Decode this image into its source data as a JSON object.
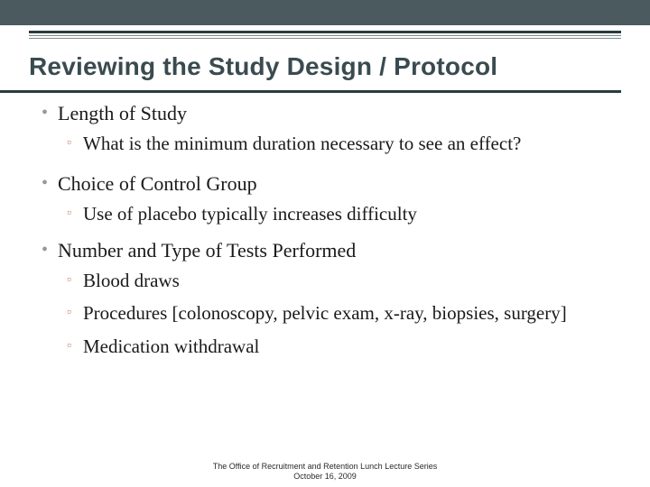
{
  "colors": {
    "top_band": "#4a5a5f",
    "rule_dark": "#2a3b40",
    "rule_light": "#7a8a8f",
    "title_color": "#3a4b50",
    "lvl1_bullet": "#909a9e",
    "lvl2_bullet": "#c2846e",
    "body_text": "#1a1a1a",
    "background": "#ffffff"
  },
  "typography": {
    "title_family": "Verdana",
    "title_size_pt": 21,
    "title_weight": "700",
    "body_family": "Georgia",
    "lvl1_size_pt": 17,
    "lvl2_size_pt": 16,
    "footer_family": "Verdana",
    "footer_size_pt": 7
  },
  "title": "Reviewing the Study Design / Protocol",
  "bullets": [
    {
      "text": "Length of Study",
      "sub": [
        "What is the minimum duration necessary to see an effect?"
      ]
    },
    {
      "text": "Choice of Control Group",
      "sub": [
        "Use of placebo typically increases difficulty"
      ]
    },
    {
      "text": "Number and Type of Tests Performed",
      "sub": [
        "Blood draws",
        "Procedures [colonoscopy, pelvic exam, x-ray, biopsies, surgery]",
        "Medication withdrawal"
      ]
    }
  ],
  "footer": {
    "line1": "The Office of Recruitment and Retention Lunch Lecture Series",
    "line2": "October 16, 2009"
  }
}
